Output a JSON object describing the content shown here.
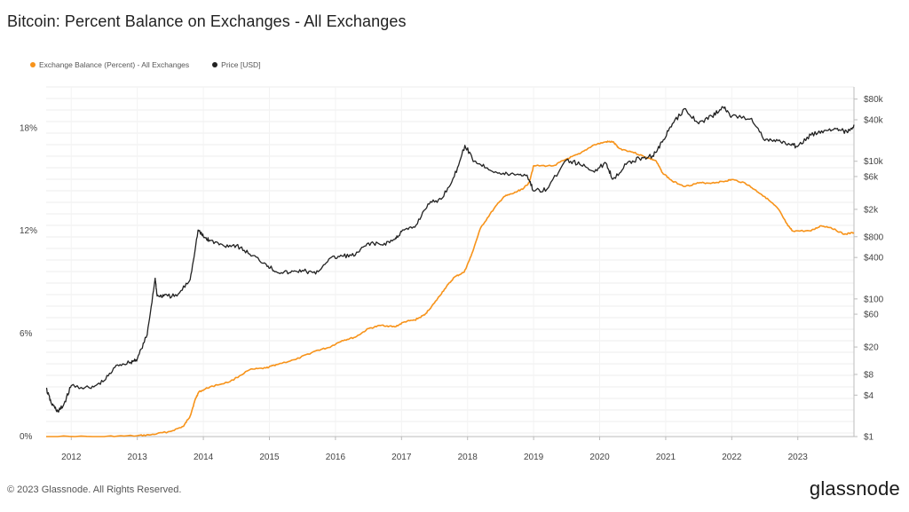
{
  "title": "Bitcoin: Percent Balance on Exchanges - All Exchanges",
  "footer": "© 2023 Glassnode. All Rights Reserved.",
  "brand": "glassnode",
  "legend": {
    "balance": {
      "label": "Exchange Balance (Percent) - All Exchanges",
      "color": "#f7931a"
    },
    "price": {
      "label": "Price [USD]",
      "color": "#222222"
    }
  },
  "chart_data": {
    "type": "line",
    "xlabel": "",
    "ylabel": "",
    "x_ticks": [
      "2012",
      "2013",
      "2014",
      "2015",
      "2016",
      "2017",
      "2018",
      "2019",
      "2020",
      "2021",
      "2022",
      "2023"
    ],
    "x_range": [
      2011.62,
      2023.85
    ],
    "left_axis": {
      "ticks": [
        "0%",
        "6%",
        "12%",
        "18%"
      ],
      "values": [
        0,
        6,
        12,
        18
      ],
      "range": [
        0,
        20.4
      ]
    },
    "right_axis": {
      "scale": "log",
      "ticks": [
        "$1",
        "$4",
        "$8",
        "$20",
        "$60",
        "$100",
        "$400",
        "$800",
        "$2k",
        "$6k",
        "$10k",
        "$40k",
        "$80k"
      ],
      "values": [
        1,
        4,
        8,
        20,
        60,
        100,
        400,
        800,
        2000,
        6000,
        10000,
        40000,
        80000
      ],
      "range": [
        1,
        120000
      ]
    },
    "grid": true,
    "legend_position": "top-left",
    "series": [
      {
        "name": "Exchange Balance (Percent) - All Exchanges",
        "color": "#f7931a",
        "axis": "left",
        "x": [
          2011.62,
          2012.5,
          2013.0,
          2013.2,
          2013.5,
          2013.7,
          2013.8,
          2013.88,
          2013.93,
          2014.1,
          2014.4,
          2014.7,
          2014.95,
          2015.1,
          2015.4,
          2015.7,
          2015.9,
          2016.1,
          2016.3,
          2016.5,
          2016.7,
          2016.9,
          2017.05,
          2017.2,
          2017.35,
          2017.5,
          2017.65,
          2017.8,
          2017.95,
          2018.05,
          2018.2,
          2018.4,
          2018.55,
          2018.7,
          2018.85,
          2018.93,
          2019.0,
          2019.3,
          2019.5,
          2019.7,
          2019.9,
          2020.1,
          2020.2,
          2020.3,
          2020.5,
          2020.7,
          2020.85,
          2020.95,
          2021.1,
          2021.3,
          2021.5,
          2021.7,
          2021.9,
          2022.0,
          2022.2,
          2022.35,
          2022.5,
          2022.7,
          2022.85,
          2022.92,
          2023.2,
          2023.35,
          2023.5,
          2023.7,
          2023.85
        ],
        "y": [
          0.0,
          0.0,
          0.05,
          0.1,
          0.3,
          0.6,
          1.2,
          2.2,
          2.6,
          2.9,
          3.2,
          3.9,
          4.0,
          4.2,
          4.5,
          5.0,
          5.2,
          5.6,
          5.8,
          6.3,
          6.5,
          6.4,
          6.7,
          6.8,
          7.1,
          7.8,
          8.6,
          9.3,
          9.6,
          10.5,
          12.2,
          13.3,
          14.0,
          14.2,
          14.5,
          14.8,
          15.8,
          15.8,
          16.2,
          16.5,
          17.0,
          17.2,
          17.2,
          16.8,
          16.6,
          16.3,
          16.1,
          15.4,
          14.9,
          14.6,
          14.8,
          14.8,
          14.9,
          15.0,
          14.8,
          14.4,
          14.0,
          13.3,
          12.3,
          12.0,
          12.0,
          12.3,
          12.2,
          11.8,
          11.9
        ]
      },
      {
        "name": "Price [USD]",
        "color": "#222222",
        "axis": "right",
        "x": [
          2011.62,
          2011.7,
          2011.8,
          2011.88,
          2012.0,
          2012.3,
          2012.5,
          2012.7,
          2012.9,
          2013.0,
          2013.15,
          2013.27,
          2013.3,
          2013.4,
          2013.6,
          2013.8,
          2013.92,
          2014.0,
          2014.1,
          2014.3,
          2014.5,
          2014.7,
          2014.95,
          2015.1,
          2015.3,
          2015.5,
          2015.7,
          2015.9,
          2016.1,
          2016.3,
          2016.5,
          2016.7,
          2016.9,
          2017.0,
          2017.2,
          2017.4,
          2017.6,
          2017.8,
          2017.96,
          2018.1,
          2018.3,
          2018.5,
          2018.7,
          2018.9,
          2019.0,
          2019.2,
          2019.5,
          2019.7,
          2019.9,
          2020.1,
          2020.2,
          2020.4,
          2020.6,
          2020.8,
          2020.95,
          2021.1,
          2021.3,
          2021.5,
          2021.7,
          2021.87,
          2022.0,
          2022.3,
          2022.5,
          2022.7,
          2022.9,
          2023.0,
          2023.2,
          2023.4,
          2023.6,
          2023.75,
          2023.85
        ],
        "y": [
          5.0,
          3.0,
          2.3,
          2.8,
          5.5,
          5.0,
          6.5,
          11.0,
          12.0,
          13.5,
          30.0,
          200.0,
          110.0,
          110.0,
          110.0,
          190.0,
          1000.0,
          800.0,
          700.0,
          600.0,
          600.0,
          450.0,
          320.0,
          250.0,
          240.0,
          260.0,
          230.0,
          380.0,
          420.0,
          430.0,
          650.0,
          610.0,
          730.0,
          950.0,
          1100.0,
          2400.0,
          2800.0,
          6000.0,
          17000.0,
          10000.0,
          8000.0,
          6500.0,
          6500.0,
          6300.0,
          3700.0,
          3900.0,
          10500.0,
          9000.0,
          7200.0,
          9300.0,
          5500.0,
          9000.0,
          11000.0,
          12000.0,
          19000.0,
          35000.0,
          58000.0,
          35000.0,
          45000.0,
          61000.0,
          45000.0,
          42000.0,
          20000.0,
          19800.0,
          17000.0,
          16500.0,
          24000.0,
          28000.0,
          30000.0,
          26000.0,
          34000.0
        ]
      }
    ]
  }
}
